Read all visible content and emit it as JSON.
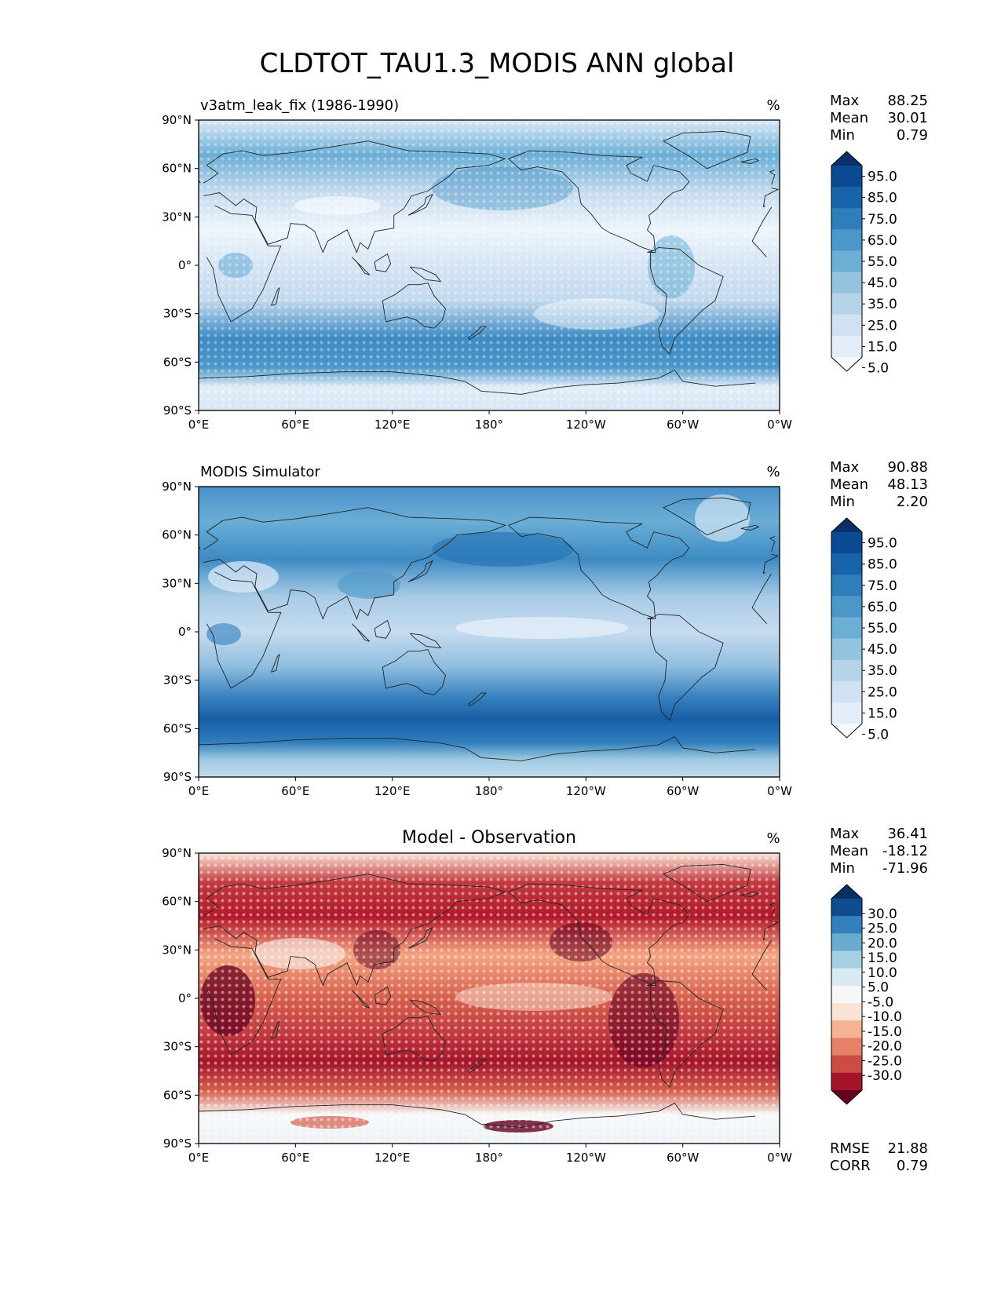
{
  "title": "CLDTOT_TAU1.3_MODIS ANN global",
  "chart_data": [
    {
      "type": "heatmap",
      "panel": "test",
      "title_left": "v3atm_leak_fix (1986-1990)",
      "title_center": "",
      "units": "%",
      "stats": {
        "max_label": "Max",
        "max": "88.25",
        "mean_label": "Mean",
        "mean": "30.01",
        "min_label": "Min",
        "min": "0.79"
      },
      "xticks": [
        "0°E",
        "60°E",
        "120°E",
        "180°",
        "120°W",
        "60°W",
        "0°W"
      ],
      "yticks": [
        "90°N",
        "60°N",
        "30°N",
        "0°",
        "30°S",
        "60°S",
        "90°S"
      ],
      "x_range": [
        0,
        360
      ],
      "y_range": [
        -90,
        90
      ],
      "colorbar": {
        "colors": [
          "#f7fbff",
          "#e3eef9",
          "#cfe1f2",
          "#b5d4e9",
          "#93c3df",
          "#6daed5",
          "#4b97c9",
          "#2f7ebc",
          "#1864aa",
          "#0a4a90",
          "#08306b"
        ],
        "labels": [
          "95.0",
          "85.0",
          "75.0",
          "65.0",
          "55.0",
          "45.0",
          "35.0",
          "25.0",
          "15.0",
          "5.0"
        ]
      },
      "extras": []
    },
    {
      "type": "heatmap",
      "panel": "reference",
      "title_left": "MODIS Simulator",
      "title_center": "",
      "units": "%",
      "stats": {
        "max_label": "Max",
        "max": "90.88",
        "mean_label": "Mean",
        "mean": "48.13",
        "min_label": "Min",
        "min": "2.20"
      },
      "xticks": [
        "0°E",
        "60°E",
        "120°E",
        "180°",
        "120°W",
        "60°W",
        "0°W"
      ],
      "yticks": [
        "90°N",
        "60°N",
        "30°N",
        "0°",
        "30°S",
        "60°S",
        "90°S"
      ],
      "x_range": [
        0,
        360
      ],
      "y_range": [
        -90,
        90
      ],
      "colorbar": {
        "colors": [
          "#f7fbff",
          "#e3eef9",
          "#cfe1f2",
          "#b5d4e9",
          "#93c3df",
          "#6daed5",
          "#4b97c9",
          "#2f7ebc",
          "#1864aa",
          "#0a4a90",
          "#08306b"
        ],
        "labels": [
          "95.0",
          "85.0",
          "75.0",
          "65.0",
          "55.0",
          "45.0",
          "35.0",
          "25.0",
          "15.0",
          "5.0"
        ]
      },
      "extras": []
    },
    {
      "type": "heatmap",
      "panel": "difference",
      "title_left": "",
      "title_center": "Model - Observation",
      "units": "%",
      "stats": {
        "max_label": "Max",
        "max": "36.41",
        "mean_label": "Mean",
        "mean": "-18.12",
        "min_label": "Min",
        "min": "-71.96"
      },
      "xticks": [
        "0°E",
        "60°E",
        "120°E",
        "180°",
        "120°W",
        "60°W",
        "0°W"
      ],
      "yticks": [
        "90°N",
        "60°N",
        "30°N",
        "0°",
        "30°S",
        "60°S",
        "90°S"
      ],
      "x_range": [
        0,
        360
      ],
      "y_range": [
        -90,
        90
      ],
      "colorbar": {
        "colors": [
          "#67001f",
          "#a51429",
          "#cc4c44",
          "#e58368",
          "#f6b394",
          "#fbe3d4",
          "#f7f7f7",
          "#d8e9f1",
          "#a6cfe4",
          "#6aacd0",
          "#3281bc",
          "#0f4d8f",
          "#053061"
        ],
        "labels": [
          "30.0",
          "25.0",
          "20.0",
          "15.0",
          "10.0",
          "5.0",
          "-5.0",
          "-10.0",
          "-15.0",
          "-20.0",
          "-25.0",
          "-30.0"
        ]
      },
      "extras": [
        {
          "label": "RMSE",
          "value": "21.88"
        },
        {
          "label": "CORR",
          "value": "0.79"
        }
      ]
    }
  ]
}
